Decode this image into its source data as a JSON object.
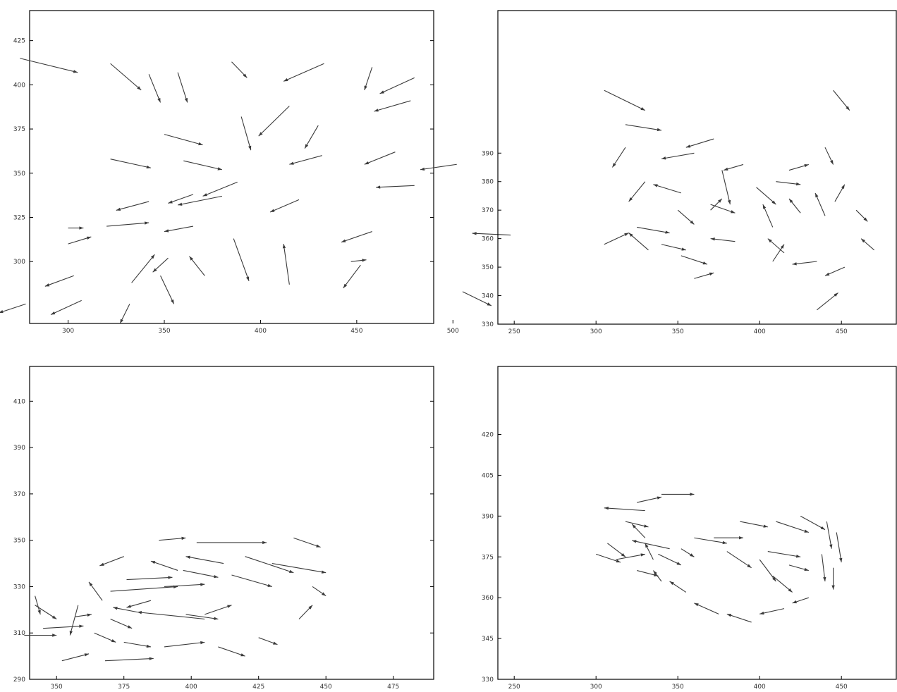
{
  "chart_data": [
    {
      "type": "scatter",
      "title": "",
      "xlabel": "",
      "ylabel": "",
      "grid": false,
      "xlim": [
        280,
        490
      ],
      "ylim": [
        265,
        442
      ],
      "xticks": [
        300,
        350,
        400,
        450,
        500
      ],
      "xtick_labels": [
        "300",
        "350",
        "400",
        "450",
        "500"
      ],
      "yticks": [
        300,
        325,
        350,
        375,
        400,
        425
      ],
      "ytick_labels": [
        "300",
        "325",
        "350",
        "375",
        "400",
        "425"
      ],
      "vectors": [
        [
          275,
          415,
          305,
          407
        ],
        [
          322,
          412,
          338,
          397
        ],
        [
          342,
          406,
          348,
          390
        ],
        [
          357,
          407,
          362,
          390
        ],
        [
          385,
          413,
          393,
          404
        ],
        [
          433,
          412,
          412,
          402
        ],
        [
          458,
          410,
          454,
          397
        ],
        [
          480,
          404,
          462,
          395
        ],
        [
          478,
          391,
          459,
          385
        ],
        [
          350,
          372,
          370,
          366
        ],
        [
          390,
          382,
          395,
          363
        ],
        [
          415,
          388,
          399,
          371
        ],
        [
          430,
          377,
          423,
          364
        ],
        [
          322,
          358,
          343,
          353
        ],
        [
          360,
          357,
          380,
          352
        ],
        [
          432,
          360,
          415,
          355
        ],
        [
          470,
          362,
          454,
          355
        ],
        [
          502,
          355,
          483,
          352
        ],
        [
          480,
          343,
          460,
          342
        ],
        [
          388,
          345,
          370,
          337
        ],
        [
          420,
          335,
          405,
          328
        ],
        [
          458,
          317,
          442,
          311
        ],
        [
          530,
          315,
          510,
          316
        ],
        [
          342,
          334,
          325,
          329
        ],
        [
          365,
          338,
          352,
          333
        ],
        [
          380,
          337,
          357,
          332
        ],
        [
          320,
          320,
          342,
          322
        ],
        [
          300,
          319,
          308,
          319
        ],
        [
          300,
          310,
          312,
          314
        ],
        [
          365,
          320,
          350,
          317
        ],
        [
          452,
          298,
          443,
          285
        ],
        [
          415,
          287,
          412,
          310
        ],
        [
          386,
          313,
          394,
          289
        ],
        [
          371,
          292,
          363,
          303
        ],
        [
          348,
          292,
          355,
          276
        ],
        [
          333,
          288,
          345,
          304
        ],
        [
          332,
          276,
          327,
          265
        ],
        [
          278,
          276,
          264,
          271
        ],
        [
          307,
          278,
          291,
          270
        ],
        [
          303,
          292,
          288,
          286
        ],
        [
          352,
          302,
          344,
          294
        ],
        [
          505,
          283,
          520,
          275
        ],
        [
          447,
          300,
          455,
          301
        ]
      ]
    },
    {
      "type": "scatter",
      "title": "",
      "xlabel": "",
      "ylabel": "",
      "grid": false,
      "xlim": [
        240,
        490
      ],
      "ylim": [
        330,
        440
      ],
      "xticks": [
        250,
        300,
        350,
        400,
        450
      ],
      "xtick_labels": [
        "250",
        "300",
        "350",
        "400",
        "450"
      ],
      "yticks": [
        330,
        340,
        350,
        360,
        370,
        380,
        390
      ],
      "ytick_labels": [
        "330",
        "340",
        "350",
        "360",
        "370",
        "380",
        "390"
      ],
      "vectors": [
        [
          305,
          412,
          330,
          405
        ],
        [
          318,
          400,
          340,
          398
        ],
        [
          360,
          390,
          340,
          388
        ],
        [
          372,
          395,
          355,
          392
        ],
        [
          390,
          386,
          378,
          384
        ],
        [
          398,
          378,
          410,
          372
        ],
        [
          352,
          376,
          335,
          379
        ],
        [
          330,
          380,
          320,
          373
        ],
        [
          318,
          392,
          310,
          385
        ],
        [
          350,
          370,
          360,
          365
        ],
        [
          370,
          372,
          385,
          369
        ],
        [
          325,
          364,
          345,
          362
        ],
        [
          340,
          358,
          355,
          356
        ],
        [
          352,
          354,
          368,
          351
        ],
        [
          360,
          346,
          372,
          348
        ],
        [
          385,
          359,
          370,
          360
        ],
        [
          415,
          355,
          405,
          360
        ],
        [
          425,
          369,
          418,
          374
        ],
        [
          440,
          368,
          434,
          376
        ],
        [
          446,
          373,
          452,
          379
        ],
        [
          459,
          370,
          466,
          366
        ],
        [
          470,
          356,
          462,
          360
        ],
        [
          452,
          350,
          440,
          347
        ],
        [
          435,
          352,
          420,
          351
        ],
        [
          408,
          352,
          415,
          358
        ],
        [
          408,
          364,
          402,
          372
        ],
        [
          410,
          380,
          425,
          379
        ],
        [
          418,
          384,
          430,
          386
        ],
        [
          440,
          392,
          445,
          386
        ],
        [
          445,
          412,
          455,
          405
        ],
        [
          435,
          335,
          448,
          341
        ],
        [
          332,
          356,
          320,
          362
        ],
        [
          305,
          358,
          320,
          362
        ],
        [
          377,
          384,
          382,
          372
        ],
        [
          370,
          370,
          377,
          374
        ]
      ]
    },
    {
      "type": "scatter",
      "title": "",
      "xlabel": "",
      "ylabel": "",
      "grid": false,
      "xlim": [
        340,
        490
      ],
      "ylim": [
        290,
        425
      ],
      "xticks": [
        350,
        375,
        400,
        425,
        450,
        475
      ],
      "xtick_labels": [
        "350",
        "375",
        "400",
        "425",
        "450",
        "475"
      ],
      "yticks": [
        290,
        310,
        330,
        350,
        370,
        390,
        410
      ],
      "ytick_labels": [
        "290",
        "310",
        "330",
        "350",
        "370",
        "390",
        "410"
      ],
      "vectors": [
        [
          388,
          350,
          398,
          351
        ],
        [
          402,
          349,
          428,
          349
        ],
        [
          438,
          351,
          448,
          347
        ],
        [
          412,
          340,
          398,
          343
        ],
        [
          395,
          337,
          385,
          341
        ],
        [
          375,
          343,
          366,
          339
        ],
        [
          420,
          343,
          438,
          336
        ],
        [
          430,
          340,
          450,
          336
        ],
        [
          415,
          335,
          430,
          330
        ],
        [
          397,
          337,
          410,
          334
        ],
        [
          390,
          330,
          405,
          331
        ],
        [
          376,
          333,
          393,
          334
        ],
        [
          370,
          328,
          395,
          330
        ],
        [
          405,
          316,
          380,
          319
        ],
        [
          398,
          318,
          410,
          316
        ],
        [
          405,
          318,
          415,
          322
        ],
        [
          385,
          324,
          376,
          321
        ],
        [
          380,
          319,
          371,
          321
        ],
        [
          370,
          316,
          378,
          312
        ],
        [
          358,
          322,
          355,
          309
        ],
        [
          364,
          310,
          372,
          306
        ],
        [
          375,
          306,
          385,
          304
        ],
        [
          390,
          304,
          405,
          306
        ],
        [
          410,
          304,
          420,
          300
        ],
        [
          425,
          308,
          432,
          305
        ],
        [
          440,
          316,
          445,
          322
        ],
        [
          445,
          330,
          450,
          326
        ],
        [
          357,
          317,
          363,
          318
        ],
        [
          345,
          312,
          360,
          313
        ],
        [
          368,
          298,
          386,
          299
        ],
        [
          338,
          309,
          350,
          309
        ],
        [
          342,
          322,
          350,
          316
        ],
        [
          342,
          326,
          344,
          318
        ],
        [
          367,
          324,
          362,
          332
        ],
        [
          352,
          298,
          362,
          301
        ]
      ]
    },
    {
      "type": "scatter",
      "title": "",
      "xlabel": "",
      "ylabel": "",
      "grid": false,
      "xlim": [
        240,
        490
      ],
      "ylim": [
        330,
        445
      ],
      "xticks": [
        250,
        300,
        350,
        400,
        450
      ],
      "xtick_labels": [
        "250",
        "300",
        "350",
        "400",
        "450"
      ],
      "yticks": [
        330,
        345,
        360,
        375,
        390,
        405,
        420
      ],
      "ytick_labels": [
        "330",
        "345",
        "360",
        "375",
        "390",
        "405",
        "420"
      ],
      "vectors": [
        [
          330,
          392,
          305,
          393
        ],
        [
          318,
          388,
          332,
          386
        ],
        [
          345,
          378,
          322,
          381
        ],
        [
          360,
          382,
          380,
          380
        ],
        [
          380,
          377,
          395,
          371
        ],
        [
          400,
          374,
          410,
          366
        ],
        [
          408,
          368,
          420,
          362
        ],
        [
          418,
          372,
          430,
          370
        ],
        [
          405,
          377,
          425,
          375
        ],
        [
          372,
          382,
          390,
          382
        ],
        [
          388,
          388,
          405,
          386
        ],
        [
          410,
          388,
          430,
          384
        ],
        [
          425,
          390,
          440,
          385
        ],
        [
          441,
          388,
          444,
          378
        ],
        [
          447,
          384,
          450,
          373
        ],
        [
          445,
          371,
          445,
          363
        ],
        [
          438,
          376,
          440,
          366
        ],
        [
          430,
          360,
          420,
          358
        ],
        [
          415,
          356,
          400,
          354
        ],
        [
          395,
          351,
          380,
          354
        ],
        [
          375,
          354,
          360,
          358
        ],
        [
          355,
          362,
          345,
          366
        ],
        [
          340,
          366,
          335,
          370
        ],
        [
          335,
          374,
          330,
          380
        ],
        [
          330,
          382,
          322,
          387
        ],
        [
          325,
          395,
          340,
          397
        ],
        [
          340,
          398,
          360,
          398
        ],
        [
          325,
          370,
          338,
          368
        ],
        [
          338,
          376,
          352,
          372
        ],
        [
          352,
          378,
          360,
          375
        ],
        [
          307,
          380,
          318,
          375
        ],
        [
          312,
          374,
          330,
          376
        ],
        [
          300,
          376,
          315,
          373
        ]
      ]
    }
  ]
}
